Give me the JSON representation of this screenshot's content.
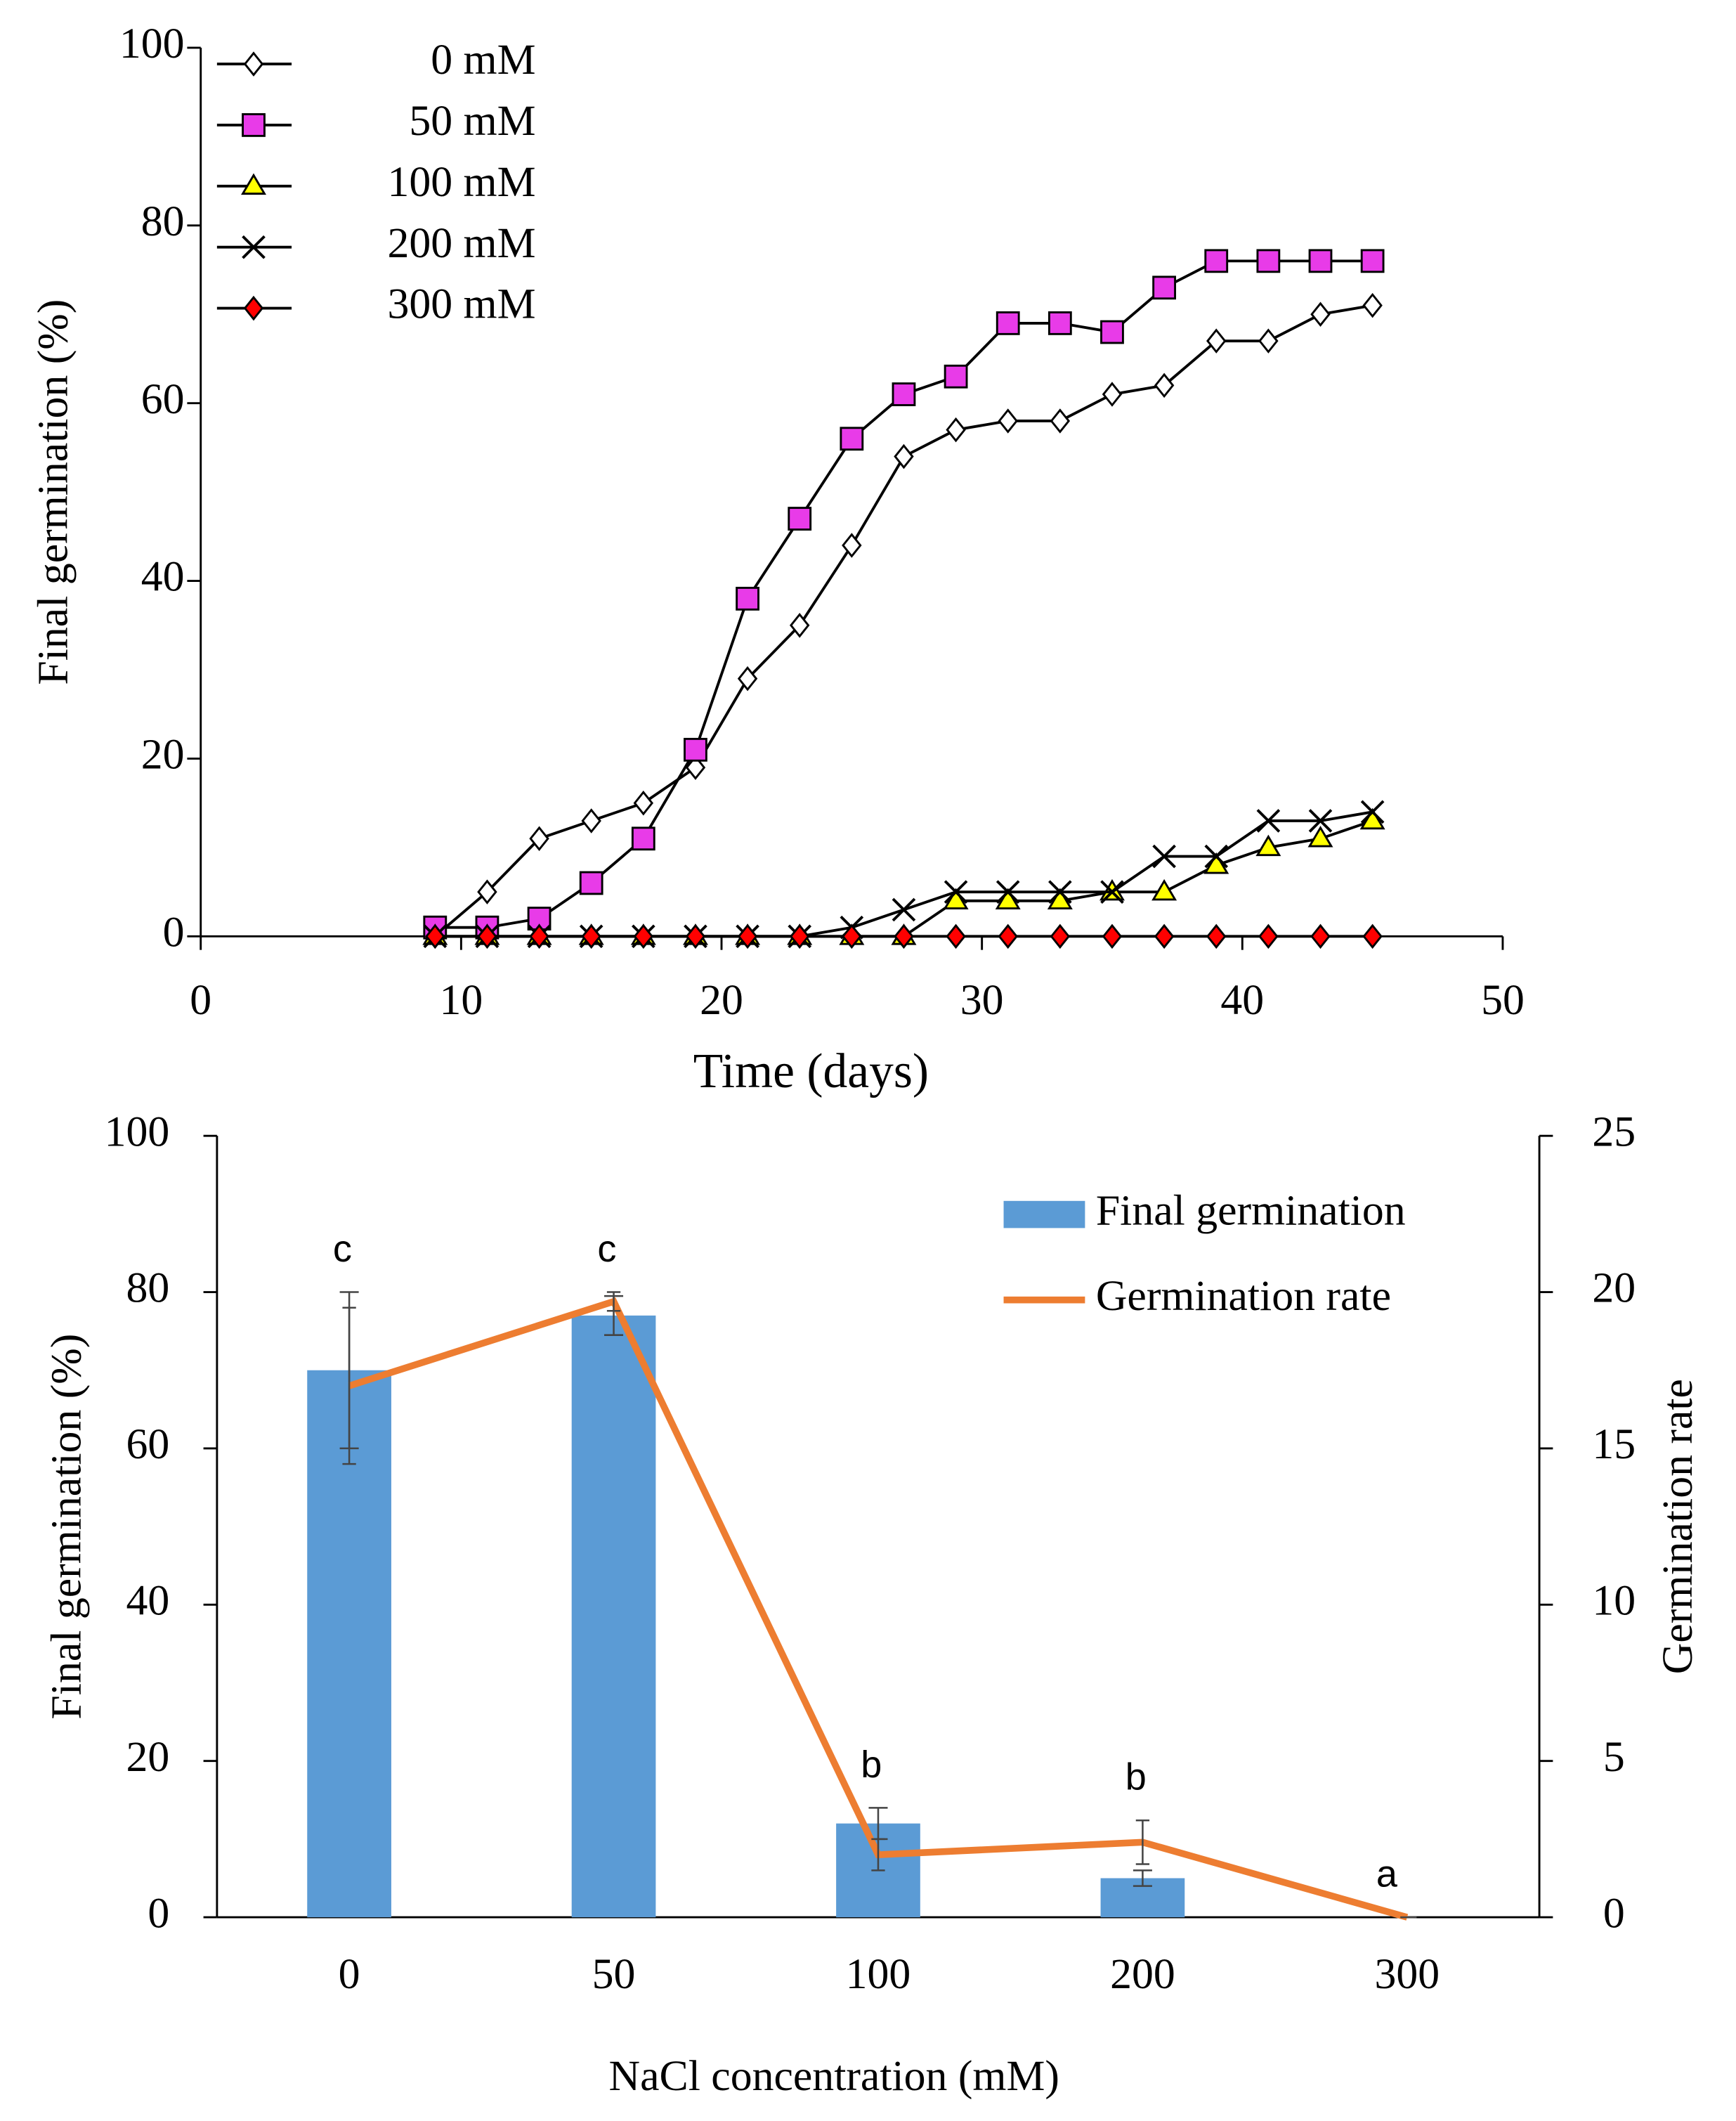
{
  "chart_data": [
    {
      "type": "line",
      "x_label": "Time (days)",
      "y_label": "Final germination (%)",
      "x": [
        9,
        11,
        13,
        15,
        17,
        19,
        21,
        23,
        25,
        27,
        29,
        31,
        33,
        35,
        37,
        39,
        41,
        43,
        45
      ],
      "series": [
        {
          "name": "0 mM",
          "color": "#ffffff",
          "marker": "diamond",
          "values": [
            0,
            5,
            11,
            13,
            15,
            19,
            29,
            35,
            44,
            54,
            57,
            58,
            58,
            61,
            62,
            67,
            67,
            70,
            71
          ]
        },
        {
          "name": "50 mM",
          "color": "#e83be8",
          "marker": "square",
          "values": [
            1,
            1,
            2,
            6,
            11,
            21,
            38,
            47,
            56,
            61,
            63,
            69,
            69,
            68,
            73,
            76,
            76,
            76,
            76
          ]
        },
        {
          "name": "100 mM",
          "color": "#ffff00",
          "marker": "triangle",
          "values": [
            0,
            0,
            0,
            0,
            0,
            0,
            0,
            0,
            0,
            0,
            4,
            4,
            4,
            5,
            5,
            8,
            10,
            11,
            13
          ]
        },
        {
          "name": "200 mM",
          "color": "#000000",
          "marker": "star",
          "values": [
            0,
            0,
            0,
            0,
            0,
            0,
            0,
            0,
            1,
            3,
            5,
            5,
            5,
            5,
            9,
            9,
            13,
            13,
            14
          ]
        },
        {
          "name": "300 mM",
          "color": "#ff0000",
          "marker": "diamond",
          "values": [
            0,
            0,
            0,
            0,
            0,
            0,
            0,
            0,
            0,
            0,
            0,
            0,
            0,
            0,
            0,
            0,
            0,
            0,
            0
          ]
        }
      ],
      "xlim": [
        0,
        50
      ],
      "xticks": [
        0,
        10,
        20,
        30,
        40,
        50
      ],
      "ylim": [
        0,
        100
      ],
      "yticks": [
        0,
        20,
        40,
        60,
        80,
        100
      ]
    },
    {
      "type": "combo",
      "x_label": "NaCl concentration (mM)",
      "y_label": "Final germination (%)",
      "y2_label": "Germination rate",
      "categories": [
        "0",
        "50",
        "100",
        "200",
        "300"
      ],
      "series": [
        {
          "name": "Final germination",
          "kind": "bar",
          "color": "#5b9bd5",
          "values": [
            70,
            77,
            12,
            5,
            0
          ],
          "errors": [
            10,
            2.5,
            2,
            1,
            0
          ]
        },
        {
          "name": "Germination rate",
          "kind": "line",
          "axis": "y2",
          "color": "#ed7d31",
          "values": [
            17,
            19.7,
            2,
            2.4,
            0
          ],
          "errors": [
            2.5,
            0.3,
            0.5,
            0.7,
            0
          ]
        }
      ],
      "letters": [
        "c",
        "c",
        "b",
        "b",
        "a"
      ],
      "ylim": [
        0,
        100
      ],
      "yticks": [
        0,
        20,
        40,
        60,
        80,
        100
      ],
      "y2lim": [
        0,
        25
      ],
      "y2ticks": [
        0,
        5,
        10,
        15,
        20,
        25
      ]
    }
  ]
}
